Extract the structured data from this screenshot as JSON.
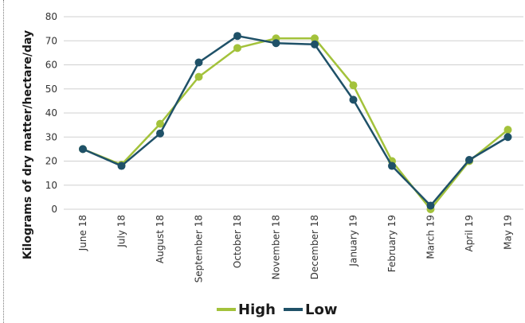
{
  "chart_data": {
    "type": "line",
    "title": "",
    "xlabel": "",
    "ylabel": "Kilograms of dry matter/hectare/day",
    "categories": [
      "June 18",
      "July 18",
      "August 18",
      "September 18",
      "October 18",
      "November 18",
      "December 18",
      "January 19",
      "February 19",
      "March 19",
      "April 19",
      "May 19"
    ],
    "ylim": [
      0,
      80
    ],
    "yticks": [
      0,
      10,
      20,
      30,
      40,
      50,
      60,
      70,
      80
    ],
    "grid": true,
    "legend_position": "bottom",
    "series": [
      {
        "name": "High",
        "color": "#a3c23b",
        "values": [
          25,
          18.5,
          35.5,
          55,
          67,
          71,
          71,
          51.5,
          20,
          0,
          20,
          33
        ]
      },
      {
        "name": "Low",
        "color": "#1f5168",
        "values": [
          25,
          18,
          31.5,
          61,
          72,
          69,
          68.5,
          45.5,
          18,
          1.5,
          20.5,
          30
        ]
      }
    ]
  }
}
